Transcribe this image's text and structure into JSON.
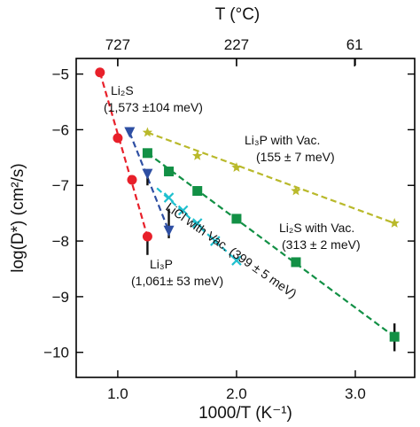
{
  "chart_data": {
    "type": "scatter",
    "xlabel": "1000/T (K⁻¹)",
    "ylabel": "log(D*) (cm²/s)",
    "top_axis_label": "T (°C)",
    "xlim": [
      0.65,
      3.5
    ],
    "ylim": [
      -10.45,
      -4.72
    ],
    "x_ticks": [
      1.0,
      2.0,
      3.0
    ],
    "x_tick_labels": [
      "1.0",
      "2.0",
      "3.0"
    ],
    "y_ticks": [
      -5,
      -6,
      -7,
      -8,
      -9,
      -10
    ],
    "y_tick_labels": [
      "−5",
      "−6",
      "−7",
      "−8",
      "−9",
      "−10"
    ],
    "top_ticks_celsius": [
      727,
      227,
      61
    ],
    "top_tick_labels": [
      "727",
      "227",
      "61"
    ],
    "series": [
      {
        "name": "Li₂S",
        "color": "#e8202a",
        "marker": "circle",
        "x": [
          0.85,
          1.0,
          1.12,
          1.25
        ],
        "y": [
          -4.97,
          -6.15,
          -6.9,
          -7.92
        ],
        "fit_x": [
          0.85,
          1.25
        ],
        "fit_y": [
          -4.97,
          -7.92
        ],
        "errorbars": [
          {
            "x": 1.25,
            "y_low": -8.25,
            "y_high": -7.92
          }
        ]
      },
      {
        "name": "Li₃P",
        "color": "#2e4fa3",
        "marker": "triangle-down",
        "x": [
          1.1,
          1.25,
          1.43
        ],
        "y": [
          -6.05,
          -6.8,
          -7.82
        ],
        "fit_x": [
          1.1,
          1.43
        ],
        "fit_y": [
          -6.05,
          -7.82
        ],
        "errorbars": [
          {
            "x": 1.25,
            "y_low": -7.0,
            "y_high": -6.72
          },
          {
            "x": 1.43,
            "y_low": -7.95,
            "y_high": -7.42
          }
        ]
      },
      {
        "name": "LiCl with Vac.",
        "color": "#1fc0cf",
        "marker": "x",
        "x": [
          1.43,
          1.55,
          1.67,
          1.82,
          2.0
        ],
        "y": [
          -7.22,
          -7.45,
          -7.68,
          -8.0,
          -8.35
        ],
        "fit_x": [
          1.33,
          2.0
        ],
        "fit_y": [
          -7.05,
          -8.35
        ],
        "errorbars": []
      },
      {
        "name": "Li₃P with Vac.",
        "color": "#b9b92b",
        "marker": "star",
        "x": [
          1.25,
          1.67,
          2.0,
          2.5,
          3.33
        ],
        "y": [
          -6.05,
          -6.47,
          -6.68,
          -7.1,
          -7.68
        ],
        "fit_x": [
          1.25,
          3.33
        ],
        "fit_y": [
          -6.05,
          -7.68
        ],
        "errorbars": []
      },
      {
        "name": "Li₂S with Vac.",
        "color": "#129045",
        "marker": "square",
        "x": [
          1.25,
          1.43,
          1.67,
          2.0,
          2.5,
          3.33
        ],
        "y": [
          -6.42,
          -6.75,
          -7.1,
          -7.6,
          -8.38,
          -9.72
        ],
        "fit_x": [
          1.25,
          3.33
        ],
        "fit_y": [
          -6.42,
          -9.72
        ],
        "errorbars": [
          {
            "x": 3.33,
            "y_low": -9.98,
            "y_high": -9.48
          }
        ]
      }
    ],
    "annotations": [
      {
        "id": "li2s-name",
        "series": "Li₂S",
        "text": "Li₂S"
      },
      {
        "id": "li2s-ea",
        "series": "Li₂S",
        "text": "(1,573 ±104 meV)"
      },
      {
        "id": "li3p-name",
        "series": "Li₃P",
        "text": "Li₃P"
      },
      {
        "id": "li3p-ea",
        "series": "Li₃P",
        "text": "(1,061± 53 meV)"
      },
      {
        "id": "licl-label",
        "series": "LiCl with Vac.",
        "text": "LiCl with Vac. (399 ± 5 meV)"
      },
      {
        "id": "li3pvac-name",
        "series": "Li₃P with Vac.",
        "text": "Li₃P with Vac."
      },
      {
        "id": "li3pvac-ea",
        "series": "Li₃P with Vac.",
        "text": "(155 ± 7 meV)"
      },
      {
        "id": "li2svac-name",
        "series": "Li₂S with Vac.",
        "text": "Li₂S with Vac."
      },
      {
        "id": "li2svac-ea",
        "series": "Li₂S with Vac.",
        "text": "(313 ± 2 meV)"
      }
    ]
  }
}
